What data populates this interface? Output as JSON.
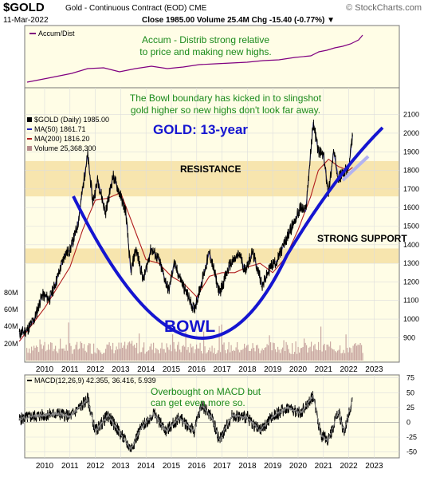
{
  "header": {
    "symbol": "$GOLD",
    "description": "Gold - Continuous Contract (EOD) CME",
    "date": "11-Mar-2022",
    "stats": "Close 1985.00  Volume 25.4M  Chg -15.40 (-0.77%) ▼",
    "brand": "© StockCharts.com"
  },
  "accum_panel": {
    "legend": "Accum/Dist",
    "note_line1": "Accum - Distrib strong relative",
    "note_line2": "to price and making new highs."
  },
  "price_panel": {
    "annotation_line1": "The Bowl boundary has kicked in to slingshot",
    "annotation_line2": "gold higher so new highs don't look far away.",
    "chart_title": "GOLD: 13-year",
    "resistance_label": "RESISTANCE",
    "support_label": "STRONG SUPPORT",
    "bowl_label": "BOWL",
    "legend": {
      "price": "$GOLD (Daily) 1985.00",
      "ma50": "MA(50) 1861.71",
      "ma200": "MA(200) 1816.20",
      "volume": "Volume 25,368,300"
    },
    "volume_ticks": [
      "80M",
      "60M",
      "40M",
      "20M"
    ]
  },
  "macd_panel": {
    "legend": "MACD(12,26,9) 42.355, 36.416, 5.939",
    "note_line1": "Overbought on MACD but",
    "note_line2": "can get   even more so."
  },
  "colors": {
    "panel_bg": "#fffde6",
    "price": "#000000",
    "ma50": "#1f1fb4",
    "ma200": "#b01e1e",
    "volume": "#b88c8c",
    "zone": "#f5dfa0",
    "bowl": "#1515d0",
    "annotation": "#1a8a1a",
    "accum_line": "#800080"
  },
  "chart_data": {
    "type": "line",
    "x_ticks": [
      "2010",
      "2011",
      "2012",
      "2013",
      "2014",
      "2015",
      "2016",
      "2017",
      "2018",
      "2019",
      "2020",
      "2021",
      "2022",
      "2023"
    ],
    "price_axis": {
      "min": 850,
      "max": 2150,
      "ticks": [
        2100,
        2000,
        1900,
        1800,
        1700,
        1600,
        1500,
        1400,
        1300,
        1200,
        1100,
        1000,
        900
      ]
    },
    "macd_axis": {
      "min": -60,
      "max": 80,
      "ticks": [
        75,
        50,
        25,
        0,
        -25,
        -50
      ]
    },
    "resistance_zone": [
      1660,
      1850
    ],
    "support_zone": [
      1300,
      1380
    ],
    "series": [
      {
        "name": "$GOLD",
        "points": [
          [
            2009.0,
            920
          ],
          [
            2009.3,
            940
          ],
          [
            2009.6,
            1000
          ],
          [
            2009.9,
            1130
          ],
          [
            2010.2,
            1110
          ],
          [
            2010.5,
            1220
          ],
          [
            2010.8,
            1350
          ],
          [
            2011.0,
            1370
          ],
          [
            2011.3,
            1500
          ],
          [
            2011.6,
            1800
          ],
          [
            2011.7,
            1880
          ],
          [
            2011.9,
            1630
          ],
          [
            2012.1,
            1750
          ],
          [
            2012.4,
            1570
          ],
          [
            2012.7,
            1770
          ],
          [
            2012.9,
            1700
          ],
          [
            2013.2,
            1580
          ],
          [
            2013.4,
            1250
          ],
          [
            2013.6,
            1380
          ],
          [
            2013.9,
            1210
          ],
          [
            2014.2,
            1380
          ],
          [
            2014.5,
            1320
          ],
          [
            2014.9,
            1150
          ],
          [
            2015.1,
            1300
          ],
          [
            2015.5,
            1170
          ],
          [
            2015.9,
            1050
          ],
          [
            2016.2,
            1200
          ],
          [
            2016.5,
            1360
          ],
          [
            2016.9,
            1140
          ],
          [
            2017.3,
            1290
          ],
          [
            2017.7,
            1350
          ],
          [
            2017.9,
            1260
          ],
          [
            2018.2,
            1360
          ],
          [
            2018.6,
            1180
          ],
          [
            2018.9,
            1280
          ],
          [
            2019.2,
            1320
          ],
          [
            2019.5,
            1420
          ],
          [
            2019.8,
            1510
          ],
          [
            2020.1,
            1600
          ],
          [
            2020.3,
            1580
          ],
          [
            2020.6,
            2060
          ],
          [
            2020.8,
            1900
          ],
          [
            2021.0,
            1880
          ],
          [
            2021.2,
            1680
          ],
          [
            2021.4,
            1900
          ],
          [
            2021.6,
            1760
          ],
          [
            2021.9,
            1800
          ],
          [
            2022.0,
            1810
          ],
          [
            2022.15,
            1985
          ]
        ]
      },
      {
        "name": "MA(200)",
        "points": [
          [
            2009.0,
            880
          ],
          [
            2010.0,
            1060
          ],
          [
            2011.0,
            1280
          ],
          [
            2011.5,
            1480
          ],
          [
            2012.0,
            1640
          ],
          [
            2012.5,
            1650
          ],
          [
            2013.0,
            1680
          ],
          [
            2013.5,
            1500
          ],
          [
            2014.0,
            1320
          ],
          [
            2014.5,
            1300
          ],
          [
            2015.0,
            1230
          ],
          [
            2015.5,
            1190
          ],
          [
            2016.0,
            1120
          ],
          [
            2016.5,
            1230
          ],
          [
            2017.0,
            1250
          ],
          [
            2017.5,
            1250
          ],
          [
            2018.0,
            1280
          ],
          [
            2018.5,
            1300
          ],
          [
            2019.0,
            1250
          ],
          [
            2019.5,
            1330
          ],
          [
            2020.0,
            1480
          ],
          [
            2020.5,
            1660
          ],
          [
            2020.8,
            1800
          ],
          [
            2021.2,
            1860
          ],
          [
            2021.6,
            1820
          ],
          [
            2022.0,
            1800
          ],
          [
            2022.15,
            1816
          ]
        ]
      },
      {
        "name": "MACD",
        "points": [
          [
            2009.0,
            5
          ],
          [
            2009.5,
            10
          ],
          [
            2010.0,
            12
          ],
          [
            2010.5,
            15
          ],
          [
            2011.0,
            10
          ],
          [
            2011.5,
            30
          ],
          [
            2011.7,
            40
          ],
          [
            2012.0,
            -15
          ],
          [
            2012.5,
            12
          ],
          [
            2013.0,
            -20
          ],
          [
            2013.4,
            -45
          ],
          [
            2013.8,
            -10
          ],
          [
            2014.3,
            15
          ],
          [
            2014.8,
            -15
          ],
          [
            2015.3,
            8
          ],
          [
            2015.9,
            -15
          ],
          [
            2016.2,
            30
          ],
          [
            2016.6,
            8
          ],
          [
            2016.9,
            -30
          ],
          [
            2017.4,
            12
          ],
          [
            2018.0,
            8
          ],
          [
            2018.5,
            -15
          ],
          [
            2019.0,
            10
          ],
          [
            2019.6,
            25
          ],
          [
            2020.1,
            15
          ],
          [
            2020.6,
            45
          ],
          [
            2020.9,
            -22
          ],
          [
            2021.2,
            -30
          ],
          [
            2021.6,
            20
          ],
          [
            2021.8,
            -18
          ],
          [
            2022.0,
            15
          ],
          [
            2022.15,
            42
          ]
        ]
      }
    ]
  }
}
